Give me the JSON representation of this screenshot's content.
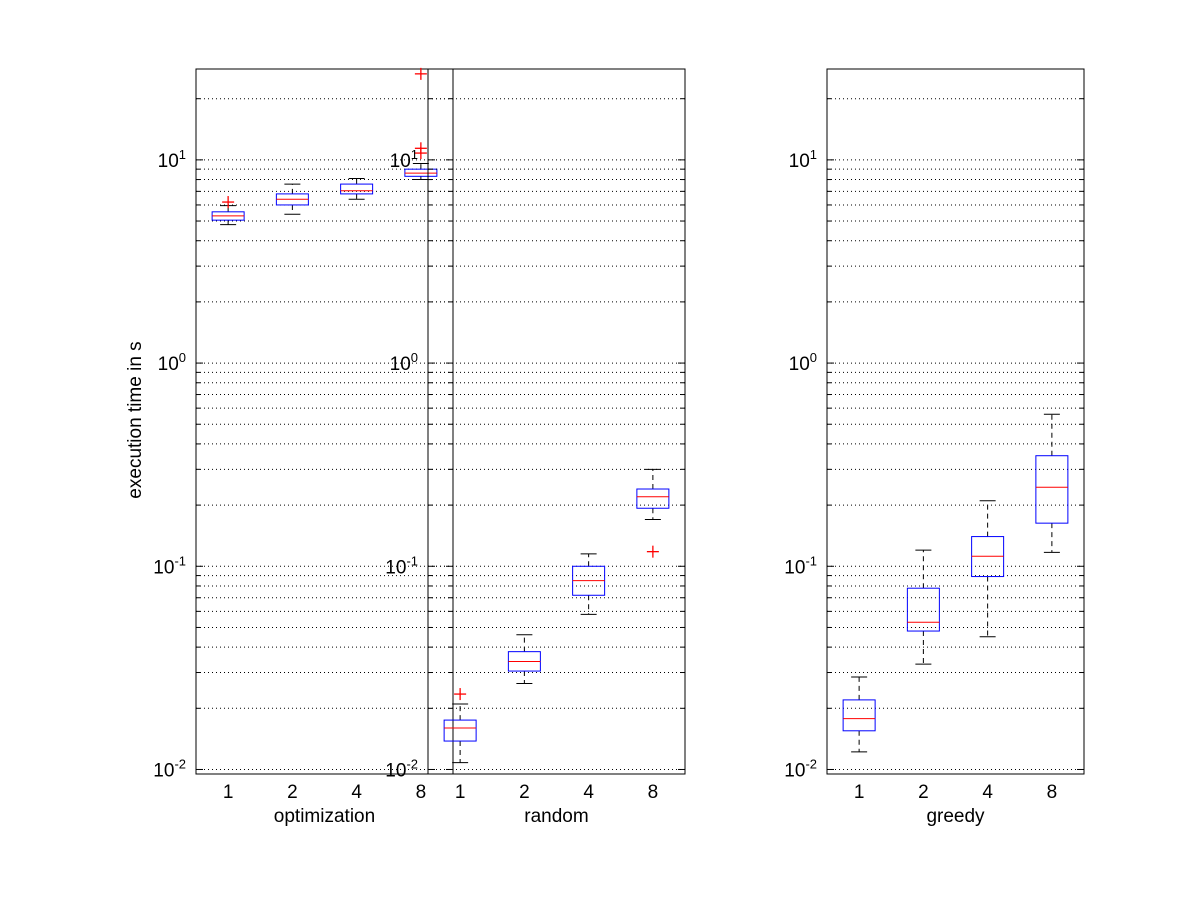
{
  "figure": {
    "ylabel": "execution time in s"
  },
  "chart_data": [
    {
      "type": "box",
      "xlabel": "optimization",
      "ylabel": "execution time in s",
      "yscale": "log",
      "ylim": [
        0.0095,
        28
      ],
      "yticks": [
        {
          "value": 0.01,
          "base": "10",
          "exp": "-2"
        },
        {
          "value": 0.1,
          "base": "10",
          "exp": "-1"
        },
        {
          "value": 1,
          "base": "10",
          "exp": "0"
        },
        {
          "value": 10,
          "base": "10",
          "exp": "1"
        }
      ],
      "grid": "y-major-and-minor-dotted",
      "categories": [
        "1",
        "2",
        "4",
        "8"
      ],
      "boxes": [
        {
          "whisker_low": 4.8,
          "q1": 5.05,
          "median": 5.3,
          "q3": 5.55,
          "whisker_high": 5.95,
          "outliers": [
            6.2
          ]
        },
        {
          "whisker_low": 5.4,
          "q1": 6.0,
          "median": 6.4,
          "q3": 6.8,
          "whisker_high": 7.6,
          "outliers": []
        },
        {
          "whisker_low": 6.4,
          "q1": 6.8,
          "median": 7.05,
          "q3": 7.6,
          "whisker_high": 8.1,
          "outliers": []
        },
        {
          "whisker_low": 8.0,
          "q1": 8.3,
          "median": 8.6,
          "q3": 9.0,
          "whisker_high": 9.6,
          "outliers": [
            10.8,
            11.4,
            26.5
          ]
        }
      ]
    },
    {
      "type": "box",
      "xlabel": "random",
      "ylabel": "",
      "yscale": "log",
      "ylim": [
        0.0095,
        28
      ],
      "yticks": [
        {
          "value": 0.01,
          "base": "10",
          "exp": "-2"
        },
        {
          "value": 0.1,
          "base": "10",
          "exp": "-1"
        },
        {
          "value": 1,
          "base": "10",
          "exp": "0"
        },
        {
          "value": 10,
          "base": "10",
          "exp": "1"
        }
      ],
      "grid": "y-major-and-minor-dotted",
      "categories": [
        "1",
        "2",
        "4",
        "8"
      ],
      "boxes": [
        {
          "whisker_low": 0.0108,
          "q1": 0.0138,
          "median": 0.016,
          "q3": 0.0175,
          "whisker_high": 0.021,
          "outliers": [
            0.0235
          ]
        },
        {
          "whisker_low": 0.0265,
          "q1": 0.0305,
          "median": 0.034,
          "q3": 0.038,
          "whisker_high": 0.046,
          "outliers": []
        },
        {
          "whisker_low": 0.058,
          "q1": 0.072,
          "median": 0.085,
          "q3": 0.1,
          "whisker_high": 0.115,
          "outliers": []
        },
        {
          "whisker_low": 0.17,
          "q1": 0.193,
          "median": 0.22,
          "q3": 0.24,
          "whisker_high": 0.3,
          "outliers": [
            0.118
          ]
        }
      ]
    },
    {
      "type": "box",
      "xlabel": "greedy",
      "ylabel": "",
      "yscale": "log",
      "ylim": [
        0.0095,
        28
      ],
      "yticks": [
        {
          "value": 0.01,
          "base": "10",
          "exp": "-2"
        },
        {
          "value": 0.1,
          "base": "10",
          "exp": "-1"
        },
        {
          "value": 1,
          "base": "10",
          "exp": "0"
        },
        {
          "value": 10,
          "base": "10",
          "exp": "1"
        }
      ],
      "grid": "y-major-and-minor-dotted",
      "categories": [
        "1",
        "2",
        "4",
        "8"
      ],
      "boxes": [
        {
          "whisker_low": 0.0122,
          "q1": 0.0155,
          "median": 0.0178,
          "q3": 0.022,
          "whisker_high": 0.0285,
          "outliers": []
        },
        {
          "whisker_low": 0.033,
          "q1": 0.048,
          "median": 0.053,
          "q3": 0.078,
          "whisker_high": 0.12,
          "outliers": []
        },
        {
          "whisker_low": 0.045,
          "q1": 0.089,
          "median": 0.112,
          "q3": 0.14,
          "whisker_high": 0.21,
          "outliers": []
        },
        {
          "whisker_low": 0.117,
          "q1": 0.163,
          "median": 0.245,
          "q3": 0.35,
          "whisker_high": 0.56,
          "outliers": []
        }
      ]
    }
  ],
  "colors": {
    "box": "#0000ff",
    "median": "#ff0000",
    "outlier": "#ff0000",
    "whisker": "#000000",
    "grid": "#000000",
    "axes": "#000000"
  }
}
